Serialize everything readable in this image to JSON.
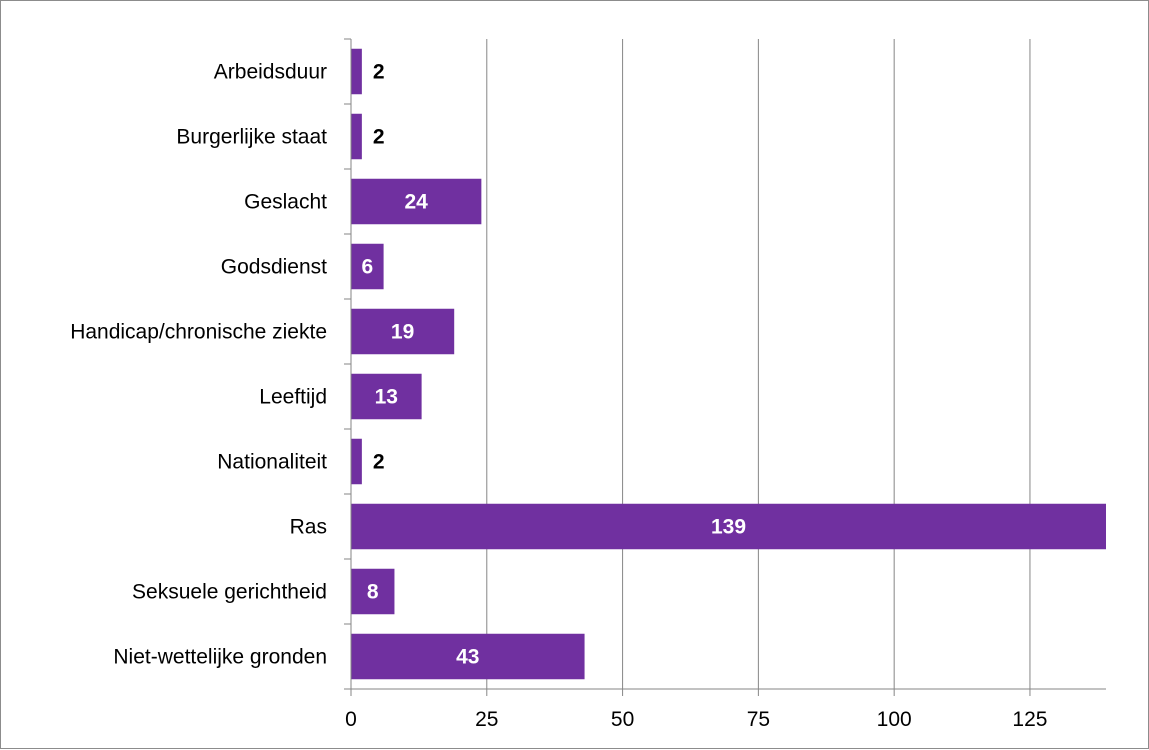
{
  "chart_data": {
    "type": "bar",
    "orientation": "horizontal",
    "categories": [
      "Arbeidsduur",
      "Burgerlijke staat",
      "Geslacht",
      "Godsdienst",
      "Handicap/chronische ziekte",
      "Leeftijd",
      "Nationaliteit",
      "Ras",
      "Seksuele gerichtheid",
      "Niet-wettelijke gronden"
    ],
    "values": [
      2,
      2,
      24,
      6,
      19,
      13,
      2,
      139,
      8,
      43
    ],
    "data_labels": [
      "2",
      "2",
      "24",
      "6",
      "19",
      "13",
      "2",
      "139",
      "8",
      "43"
    ],
    "title": "",
    "xlabel": "",
    "ylabel": "",
    "xlim": [
      0,
      139
    ],
    "x_ticks": [
      "0",
      "25",
      "50",
      "75",
      "100",
      "125"
    ],
    "x_tick_values": [
      0,
      25,
      50,
      75,
      100,
      125
    ],
    "grid": "vertical",
    "legend": "none",
    "colors": {
      "bar": "#7030a0",
      "label_inside": "#ffffff",
      "label_outside": "#000000",
      "gridline": "#868686",
      "axis": "#868686",
      "border": "#8c8c8c"
    }
  }
}
